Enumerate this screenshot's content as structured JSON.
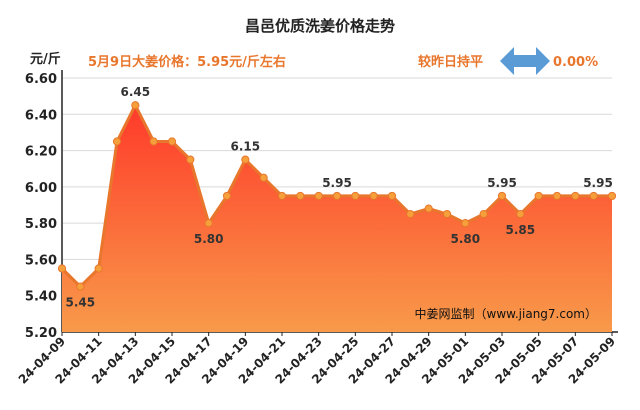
{
  "chart_data": {
    "type": "area",
    "title": "昌邑优质洗姜价格走势",
    "ylabel": "元/斤",
    "annotation_price": "5月9日大姜价格：5.95元/斤左右",
    "annotation_change_label": "较昨日持平",
    "annotation_change_value": "0.00%",
    "watermark": "中姜网监制（www.jiang7.com）",
    "ylim": [
      5.2,
      6.6
    ],
    "yticks": [
      "5.20",
      "5.40",
      "5.60",
      "5.80",
      "6.00",
      "6.20",
      "6.40",
      "6.60"
    ],
    "grid": true,
    "x": [
      "24-04-09",
      "24-04-10",
      "24-04-11",
      "24-04-12",
      "24-04-13",
      "24-04-14",
      "24-04-15",
      "24-04-16",
      "24-04-17",
      "24-04-18",
      "24-04-19",
      "24-04-20",
      "24-04-21",
      "24-04-22",
      "24-04-23",
      "24-04-24",
      "24-04-25",
      "24-04-26",
      "24-04-27",
      "24-04-28",
      "24-04-29",
      "24-04-30",
      "24-05-01",
      "24-05-02",
      "24-05-03",
      "24-05-04",
      "24-05-05",
      "24-05-06",
      "24-05-07",
      "24-05-08",
      "24-05-09"
    ],
    "xtick_labels": [
      "24-04-09",
      "24-04-11",
      "24-04-13",
      "24-04-15",
      "24-04-17",
      "24-04-19",
      "24-04-21",
      "24-04-23",
      "24-04-25",
      "24-04-27",
      "24-04-29",
      "24-05-01",
      "24-05-03",
      "24-05-05",
      "24-05-07",
      "24-05-09"
    ],
    "values": [
      5.55,
      5.45,
      5.55,
      6.25,
      6.45,
      6.25,
      6.25,
      6.15,
      5.8,
      5.95,
      6.15,
      6.05,
      5.95,
      5.95,
      5.95,
      5.95,
      5.95,
      5.95,
      5.95,
      5.85,
      5.88,
      5.85,
      5.8,
      5.85,
      5.95,
      5.85,
      5.95,
      5.95,
      5.95,
      5.95,
      5.95
    ],
    "data_labels": [
      {
        "index": 1,
        "text": "5.45"
      },
      {
        "index": 4,
        "text": "6.45"
      },
      {
        "index": 8,
        "text": "5.80"
      },
      {
        "index": 10,
        "text": "6.15"
      },
      {
        "index": 15,
        "text": "5.95"
      },
      {
        "index": 22,
        "text": "5.80"
      },
      {
        "index": 24,
        "text": "5.95"
      },
      {
        "index": 25,
        "text": "5.85"
      },
      {
        "index": 30,
        "text": "5.95"
      }
    ],
    "colors": {
      "line": "#e8762c",
      "marker": "#f6a03c",
      "fill_top": "#ff3a2a",
      "fill_bottom": "#f89a4a",
      "arrow": "#5b9bd5"
    }
  }
}
